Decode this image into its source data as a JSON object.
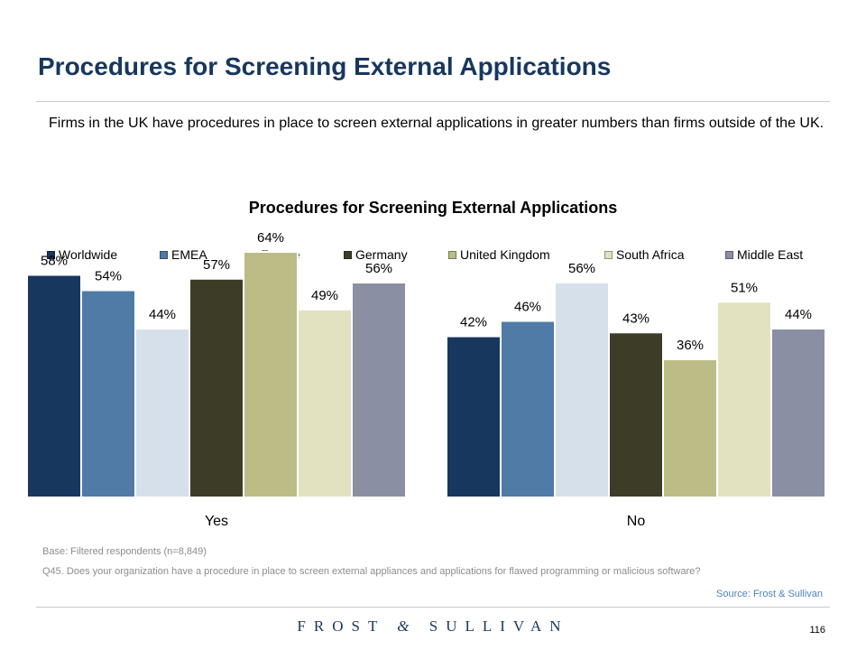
{
  "header": {
    "title": "Procedures for Screening External Applications"
  },
  "intro_text": "Firms in the UK have procedures in place to screen external applications in greater numbers than firms outside of the UK.",
  "chart_data": {
    "type": "bar",
    "title": "Procedures for Screening External Applications",
    "categories": [
      "Yes",
      "No"
    ],
    "unit": "%",
    "legend_position": "top",
    "grid": false,
    "ylim": [
      0,
      100
    ],
    "series": [
      {
        "name": "Worldwide",
        "color": "#17375e",
        "values": [
          58,
          42
        ],
        "labels": [
          "58%",
          "42%"
        ]
      },
      {
        "name": "EMEA",
        "color": "#4f7ba6",
        "values": [
          54,
          46
        ],
        "labels": [
          "54%",
          "46%"
        ]
      },
      {
        "name": "France",
        "color": "#d6e0eb",
        "values": [
          44,
          56
        ],
        "labels": [
          "44%",
          "56%"
        ]
      },
      {
        "name": "Germany",
        "color": "#3d3d27",
        "values": [
          57,
          43
        ],
        "labels": [
          "57%",
          "43%"
        ]
      },
      {
        "name": "United Kingdom",
        "color": "#bcbc86",
        "values": [
          64,
          36
        ],
        "labels": [
          "64%",
          "36%"
        ]
      },
      {
        "name": "South Africa",
        "color": "#e2e2c0",
        "values": [
          49,
          51
        ],
        "labels": [
          "49%",
          "51%"
        ]
      },
      {
        "name": "Middle East",
        "color": "#8a8fa3",
        "values": [
          56,
          44
        ],
        "labels": [
          "56%",
          "44%"
        ]
      }
    ]
  },
  "footnotes": {
    "base": "Base: Filtered respondents (n=8,849)",
    "question": "Q45. Does your organization have a procedure in place to screen external appliances and applications for flawed programming or malicious software?",
    "source": "Source: Frost & Sullivan"
  },
  "footer": {
    "logo_left": "FROST",
    "logo_amp": "&",
    "logo_right": "SULLIVAN",
    "page_number": "116"
  }
}
